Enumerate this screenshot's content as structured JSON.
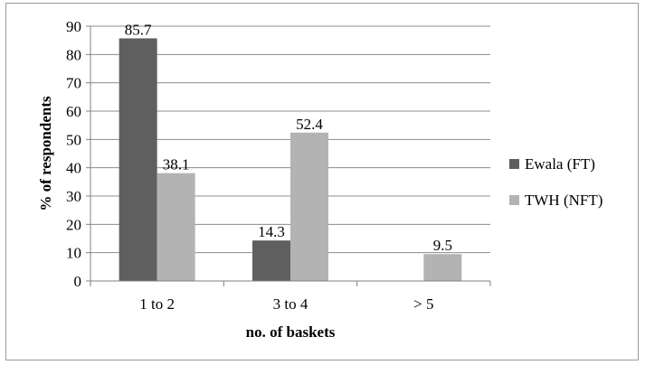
{
  "chart_data": {
    "type": "bar",
    "title": "",
    "xlabel": "no. of baskets",
    "ylabel": "% of respondents",
    "categories": [
      "1 to 2",
      "3 to 4",
      "> 5"
    ],
    "series": [
      {
        "name": "Ewala (FT)",
        "values": [
          85.7,
          14.3,
          null
        ],
        "labels": [
          "85.7",
          "14.3",
          ""
        ],
        "color": "#5f5f5f"
      },
      {
        "name": "TWH (NFT)",
        "values": [
          38.1,
          52.4,
          9.5
        ],
        "labels": [
          "38.1",
          "52.4",
          "9.5"
        ],
        "color": "#b3b3b3"
      }
    ],
    "ylim": [
      0,
      90
    ],
    "yticks": [
      "0",
      "10",
      "20",
      "30",
      "40",
      "50",
      "60",
      "70",
      "80",
      "90"
    ],
    "grid": true,
    "legend": "right"
  }
}
